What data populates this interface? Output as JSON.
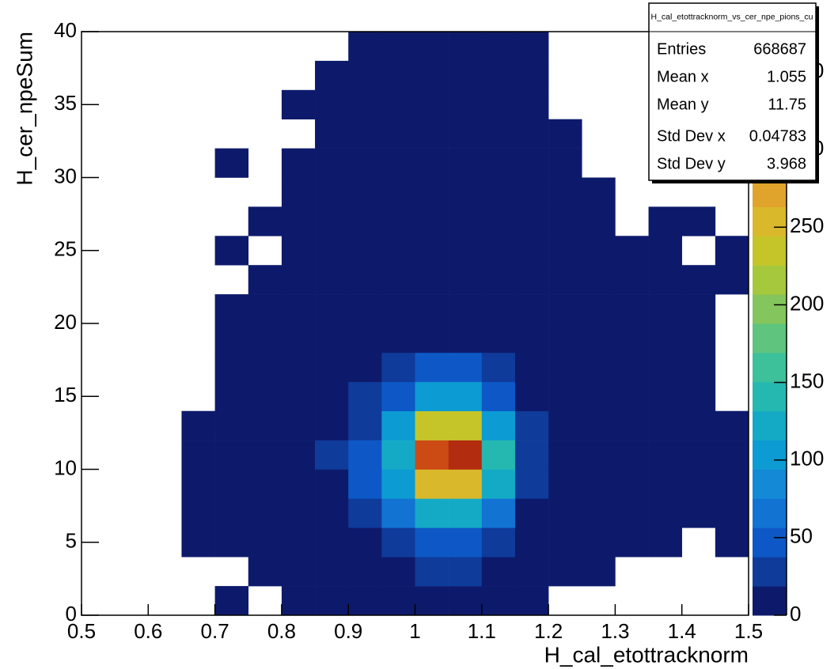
{
  "chart_data": {
    "type": "heatmap",
    "x_label": "H_cal_etottracknorm",
    "y_label": "H_cer_npeSum",
    "xlim": [
      0.5,
      1.5
    ],
    "ylim": [
      0,
      40
    ],
    "xticks": [
      0.5,
      0.6,
      0.7,
      0.8,
      0.9,
      1,
      1.1,
      1.2,
      1.3,
      1.4,
      1.5
    ],
    "yticks": [
      0,
      5,
      10,
      15,
      20,
      25,
      30,
      35,
      40
    ],
    "x_bins": [
      0.5,
      0.55,
      0.6,
      0.65,
      0.7,
      0.75,
      0.8,
      0.85,
      0.9,
      0.95,
      1,
      1.05,
      1.1,
      1.15,
      1.2,
      1.25,
      1.3,
      1.35,
      1.4,
      1.45,
      1.5
    ],
    "y_bins": [
      0,
      2,
      4,
      6,
      8,
      10,
      12,
      14,
      16,
      18,
      20,
      22,
      24,
      26,
      28,
      30,
      32,
      34,
      36,
      38,
      40
    ],
    "z": [
      [
        0,
        0,
        0,
        0,
        1,
        0,
        1,
        1,
        2,
        5,
        8,
        8,
        5,
        2,
        0,
        0,
        0,
        0,
        0,
        0
      ],
      [
        0,
        0,
        0,
        0,
        0,
        1,
        2,
        3,
        5,
        12,
        20,
        20,
        12,
        4,
        1,
        1,
        0,
        0,
        0,
        0
      ],
      [
        0,
        0,
        0,
        1,
        1,
        2,
        4,
        6,
        10,
        25,
        50,
        50,
        25,
        8,
        3,
        2,
        1,
        1,
        0,
        1
      ],
      [
        0,
        0,
        0,
        1,
        2,
        4,
        8,
        12,
        25,
        70,
        130,
        130,
        70,
        18,
        6,
        3,
        1,
        1,
        1,
        1
      ],
      [
        0,
        0,
        0,
        1,
        3,
        6,
        10,
        18,
        40,
        110,
        250,
        260,
        120,
        30,
        8,
        4,
        2,
        1,
        1,
        1
      ],
      [
        0,
        0,
        0,
        1,
        3,
        6,
        10,
        20,
        45,
        130,
        320,
        350,
        150,
        35,
        9,
        5,
        2,
        1,
        1,
        1
      ],
      [
        0,
        0,
        0,
        1,
        2,
        5,
        9,
        16,
        35,
        100,
        230,
        240,
        110,
        28,
        8,
        4,
        2,
        1,
        1,
        1
      ],
      [
        0,
        0,
        0,
        0,
        1,
        3,
        6,
        10,
        22,
        55,
        110,
        110,
        55,
        15,
        6,
        3,
        1,
        1,
        1,
        0
      ],
      [
        0,
        0,
        0,
        0,
        1,
        2,
        4,
        6,
        12,
        25,
        40,
        40,
        22,
        8,
        4,
        2,
        1,
        1,
        1,
        0
      ],
      [
        0,
        0,
        0,
        0,
        1,
        1,
        2,
        4,
        8,
        12,
        15,
        15,
        10,
        5,
        2,
        1,
        1,
        1,
        1,
        0
      ],
      [
        0,
        0,
        0,
        0,
        1,
        1,
        1,
        2,
        5,
        8,
        9,
        9,
        7,
        3,
        1,
        1,
        1,
        1,
        1,
        0
      ],
      [
        0,
        0,
        0,
        0,
        0,
        1,
        1,
        1,
        3,
        6,
        8,
        8,
        5,
        2,
        1,
        1,
        1,
        1,
        1,
        1
      ],
      [
        0,
        0,
        0,
        0,
        1,
        0,
        1,
        1,
        2,
        5,
        7,
        7,
        4,
        1,
        1,
        1,
        1,
        1,
        0,
        1
      ],
      [
        0,
        0,
        0,
        0,
        0,
        1,
        1,
        1,
        2,
        4,
        6,
        6,
        4,
        1,
        1,
        1,
        0,
        1,
        1,
        0
      ],
      [
        0,
        0,
        0,
        0,
        0,
        0,
        1,
        1,
        1,
        4,
        5,
        5,
        3,
        1,
        1,
        1,
        0,
        0,
        0,
        0
      ],
      [
        0,
        0,
        0,
        0,
        1,
        0,
        1,
        1,
        1,
        3,
        5,
        5,
        3,
        1,
        1,
        0,
        0,
        0,
        0,
        0
      ],
      [
        0,
        0,
        0,
        0,
        0,
        0,
        0,
        1,
        1,
        3,
        4,
        4,
        2,
        1,
        1,
        0,
        0,
        0,
        0,
        0
      ],
      [
        0,
        0,
        0,
        0,
        0,
        0,
        1,
        1,
        1,
        2,
        4,
        4,
        2,
        1,
        0,
        0,
        0,
        0,
        0,
        0
      ],
      [
        0,
        0,
        0,
        0,
        0,
        0,
        0,
        1,
        1,
        2,
        3,
        3,
        2,
        1,
        0,
        0,
        0,
        0,
        0,
        0
      ],
      [
        0,
        0,
        0,
        0,
        0,
        0,
        0,
        0,
        1,
        2,
        3,
        3,
        2,
        1,
        0,
        0,
        0,
        0,
        0,
        0
      ]
    ],
    "zlim": [
      0,
      376
    ],
    "zticks": [
      0,
      50,
      100,
      150,
      200,
      250,
      300,
      350
    ],
    "palette": [
      "#0d1a6b",
      "#0f3b9a",
      "#0d58c6",
      "#1273d3",
      "#1489d5",
      "#0c9bd2",
      "#14aac6",
      "#25b8b0",
      "#3cc19a",
      "#5ec47e",
      "#85c55d",
      "#a6c83c",
      "#c5c52a",
      "#dab82b",
      "#e0a32b",
      "#dd8a21",
      "#d66b1a",
      "#cc4b15",
      "#b22c10",
      "#8a1a0c"
    ],
    "stats": {
      "title": "H_cal_etottracknorm_vs_cer_npe_pions_cu",
      "rows": [
        [
          "Entries",
          "668687"
        ],
        [
          "Mean x",
          "1.055"
        ],
        [
          "Mean y",
          "11.75"
        ],
        [
          "Std Dev x",
          "0.04783"
        ],
        [
          "Std Dev y",
          "3.968"
        ]
      ]
    }
  }
}
